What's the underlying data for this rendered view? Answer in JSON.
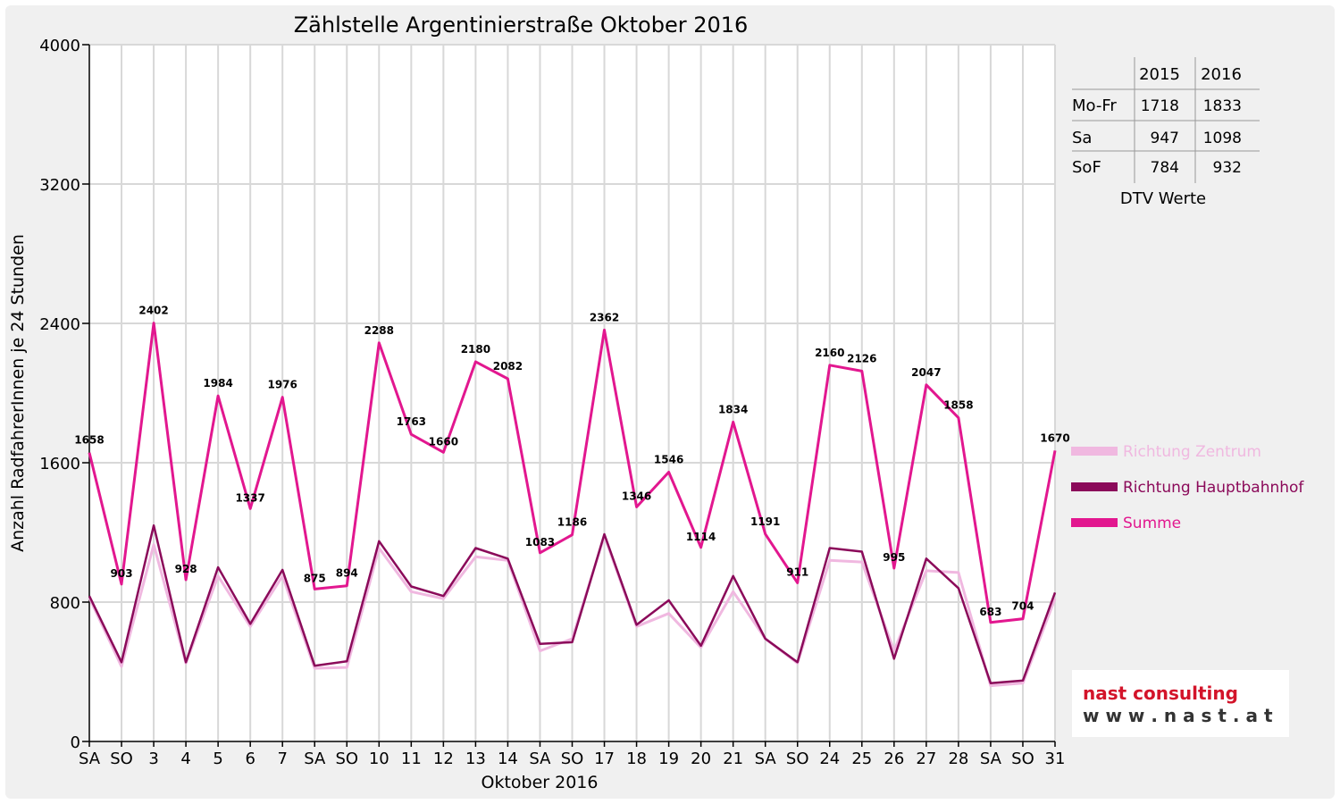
{
  "chart_data": {
    "type": "line",
    "title": "Zählstelle Argentinierstraße Oktober 2016",
    "xlabel": "Oktober 2016",
    "ylabel": "Anzahl RadfahrerInnen je 24 Stunden",
    "ylim": [
      0,
      4000
    ],
    "yticks": [
      "0",
      "800",
      "1600",
      "2400",
      "3200",
      "4000"
    ],
    "ytick_values": [
      0,
      800,
      1600,
      2400,
      3200,
      4000
    ],
    "grid": true,
    "legend_position": "right",
    "categories": [
      "SA",
      "SO",
      "3",
      "4",
      "5",
      "6",
      "7",
      "SA",
      "SO",
      "10",
      "11",
      "12",
      "13",
      "14",
      "SA",
      "SO",
      "17",
      "18",
      "19",
      "20",
      "21",
      "SA",
      "SO",
      "24",
      "25",
      "26",
      "27",
      "28",
      "SA",
      "SO",
      "31"
    ],
    "red_categories": [
      1,
      8,
      15,
      22,
      25,
      29
    ],
    "series": [
      {
        "name": "Richtung Zentrum",
        "color": "#f0b8e0",
        "values": [
          825,
          430,
          1130,
          450,
          950,
          660,
          950,
          420,
          425,
          1110,
          860,
          820,
          1060,
          1040,
          520,
          590,
          1180,
          660,
          735,
          540,
          860,
          590,
          450,
          1040,
          1030,
          520,
          980,
          970,
          320,
          335,
          820
        ]
      },
      {
        "name": "Richtung Hauptbahnhof",
        "color": "#8b0a5a",
        "values": [
          835,
          455,
          1240,
          455,
          1000,
          675,
          985,
          435,
          460,
          1150,
          890,
          835,
          1110,
          1050,
          560,
          570,
          1190,
          670,
          810,
          550,
          950,
          590,
          455,
          1110,
          1090,
          475,
          1050,
          880,
          335,
          350,
          855
        ]
      },
      {
        "name": "Summe",
        "color": "#e2178f",
        "values": [
          1658,
          903,
          2402,
          928,
          1984,
          1337,
          1976,
          875,
          894,
          2288,
          1763,
          1660,
          2180,
          2082,
          1083,
          1186,
          2362,
          1346,
          1546,
          1114,
          1834,
          1191,
          911,
          2160,
          2126,
          995,
          2047,
          1858,
          683,
          704,
          1670
        ]
      }
    ]
  },
  "dtv_table": {
    "title": "DTV Werte",
    "headers": [
      "",
      "2015",
      "2016"
    ],
    "rows": [
      {
        "label": "Mo-Fr",
        "v2015": "1718",
        "v2016": "1833"
      },
      {
        "label": "Sa",
        "v2015": "947",
        "v2016": "1098"
      },
      {
        "label": "SoF",
        "v2015": "784",
        "v2016": "932"
      }
    ]
  },
  "logo": {
    "line1": "nast consulting",
    "line2": "w w w . n a s t . a t"
  }
}
